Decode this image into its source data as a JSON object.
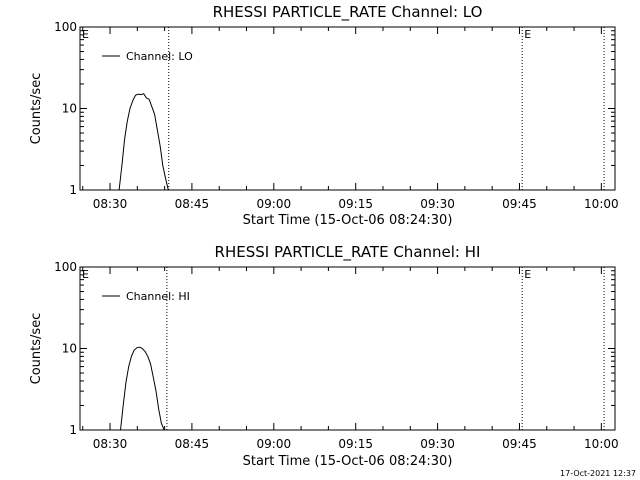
{
  "timestamp": "17-Oct-2021 12:37",
  "chart_data": [
    {
      "type": "line",
      "title": "RHESSI PARTICLE_RATE Channel: LO",
      "xlabel": "Start Time (15-Oct-06 08:24:30)",
      "ylabel": "Counts/sec",
      "x_ticks": [
        "08:30",
        "08:45",
        "09:00",
        "09:15",
        "09:30",
        "09:45",
        "10:00"
      ],
      "y_ticks": [
        "1",
        "10",
        "100"
      ],
      "y_scale": "log",
      "ylim": [
        1,
        100
      ],
      "xlim": [
        "08:24:30",
        "10:02:30"
      ],
      "grid": false,
      "legend": "top-left",
      "series": [
        {
          "name": "Channel: LO",
          "x": [
            "08:31:40",
            "08:32:10",
            "08:32:40",
            "08:33:10",
            "08:33:40",
            "08:34:10",
            "08:34:40",
            "08:35:10",
            "08:35:40",
            "08:36:10",
            "08:36:40",
            "08:37:10",
            "08:37:40",
            "08:38:10",
            "08:38:40",
            "08:39:10",
            "08:39:40",
            "08:40:10",
            "08:40:40"
          ],
          "values": [
            1.0,
            2.0,
            4.2,
            7.0,
            10.0,
            12.5,
            14.5,
            15.0,
            14.8,
            15.2,
            13.5,
            13.0,
            10.5,
            8.5,
            5.5,
            3.5,
            2.0,
            1.4,
            1.0
          ]
        }
      ],
      "vlines": [
        {
          "x": "08:40:45",
          "flag": ""
        },
        {
          "x": "09:45:30",
          "flag": "E"
        },
        {
          "x": "10:00:30",
          "flag": ""
        }
      ],
      "corner_flag": "E"
    },
    {
      "type": "line",
      "title": "RHESSI PARTICLE_RATE Channel: HI",
      "xlabel": "Start Time (15-Oct-06 08:24:30)",
      "ylabel": "Counts/sec",
      "x_ticks": [
        "08:30",
        "08:45",
        "09:00",
        "09:15",
        "09:30",
        "09:45",
        "10:00"
      ],
      "y_ticks": [
        "1",
        "10",
        "100"
      ],
      "y_scale": "log",
      "ylim": [
        1,
        100
      ],
      "xlim": [
        "08:24:30",
        "10:02:30"
      ],
      "grid": false,
      "legend": "top-left",
      "series": [
        {
          "name": "Channel: HI",
          "x": [
            "08:31:55",
            "08:32:25",
            "08:32:55",
            "08:33:25",
            "08:33:55",
            "08:34:25",
            "08:34:55",
            "08:35:25",
            "08:35:55",
            "08:36:25",
            "08:36:55",
            "08:37:25",
            "08:37:55",
            "08:38:25",
            "08:38:55",
            "08:39:25",
            "08:39:55"
          ],
          "values": [
            1.0,
            2.0,
            3.8,
            6.0,
            8.0,
            9.5,
            10.2,
            10.4,
            10.0,
            9.2,
            8.0,
            6.5,
            4.5,
            3.0,
            1.8,
            1.2,
            1.0
          ]
        }
      ],
      "vlines": [
        {
          "x": "08:40:25",
          "flag": ""
        },
        {
          "x": "09:45:30",
          "flag": "E"
        },
        {
          "x": "10:00:30",
          "flag": ""
        }
      ],
      "corner_flag": "E"
    }
  ]
}
